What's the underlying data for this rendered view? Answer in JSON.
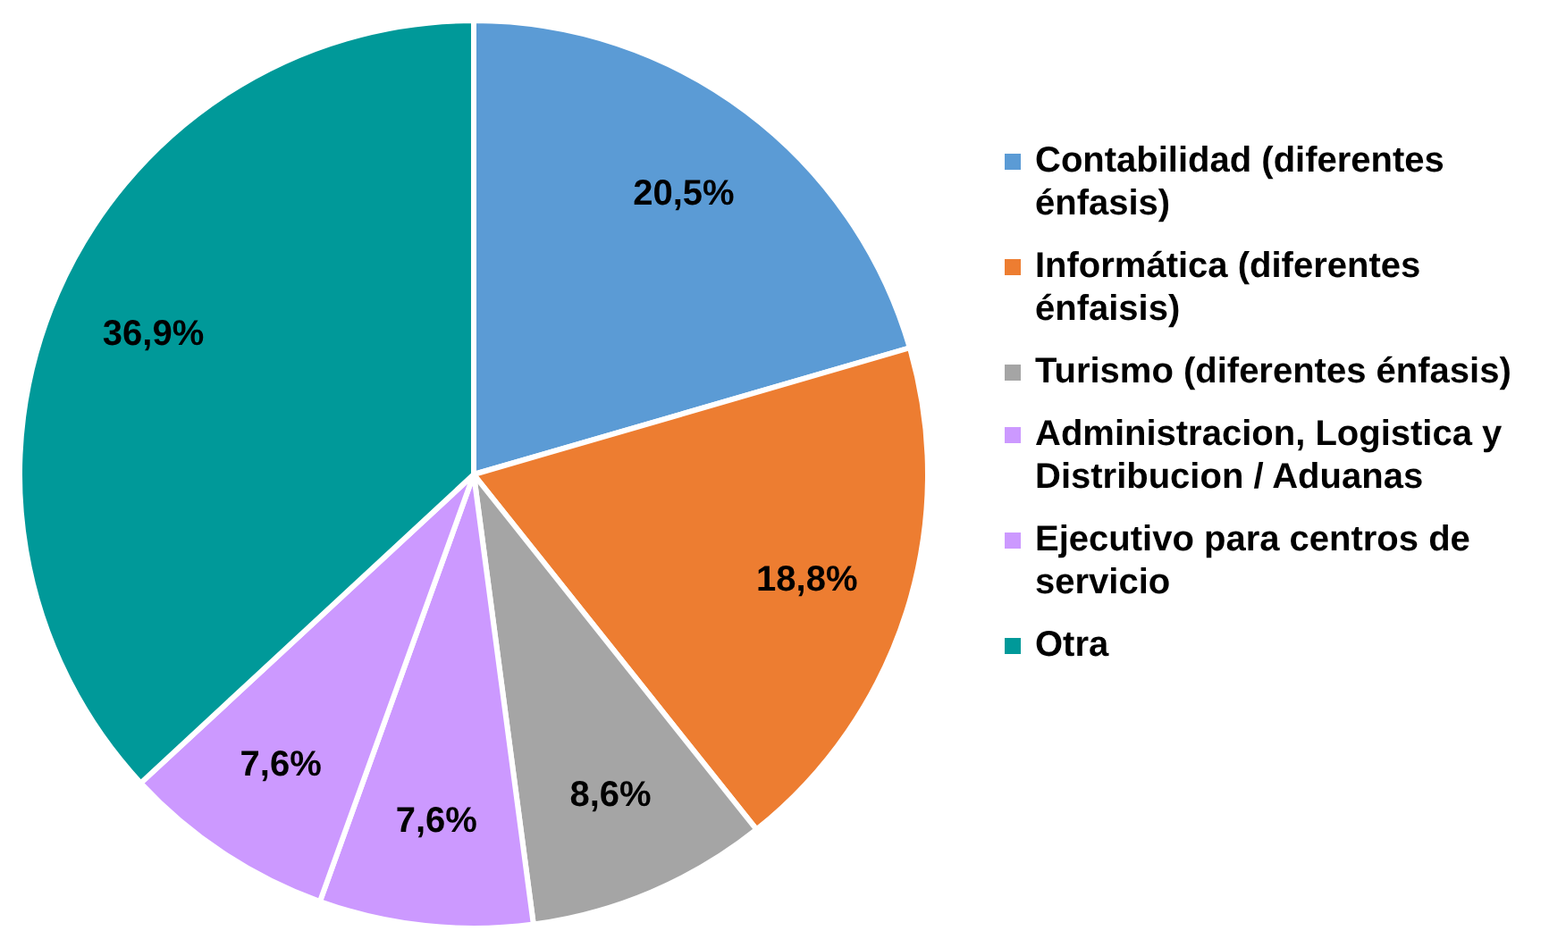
{
  "chart_data": {
    "type": "pie",
    "categories": [
      "Contabilidad (diferentes énfasis)",
      "Informática (diferentes énfaisis)",
      "Turismo (diferentes énfasis)",
      "Administracion, Logistica y Distribucion / Aduanas",
      "Ejecutivo para centros de servicio",
      "Otra"
    ],
    "values": [
      20.5,
      18.8,
      8.6,
      7.6,
      7.6,
      36.9
    ],
    "value_labels": [
      "20,5%",
      "18,8%",
      "8,6%",
      "7,6%",
      "7,6%",
      "36,9%"
    ],
    "colors": [
      "#5b9bd5",
      "#ed7d31",
      "#a5a5a5",
      "#cc99ff",
      "#cc99ff",
      "#009999"
    ],
    "legend": "right"
  }
}
